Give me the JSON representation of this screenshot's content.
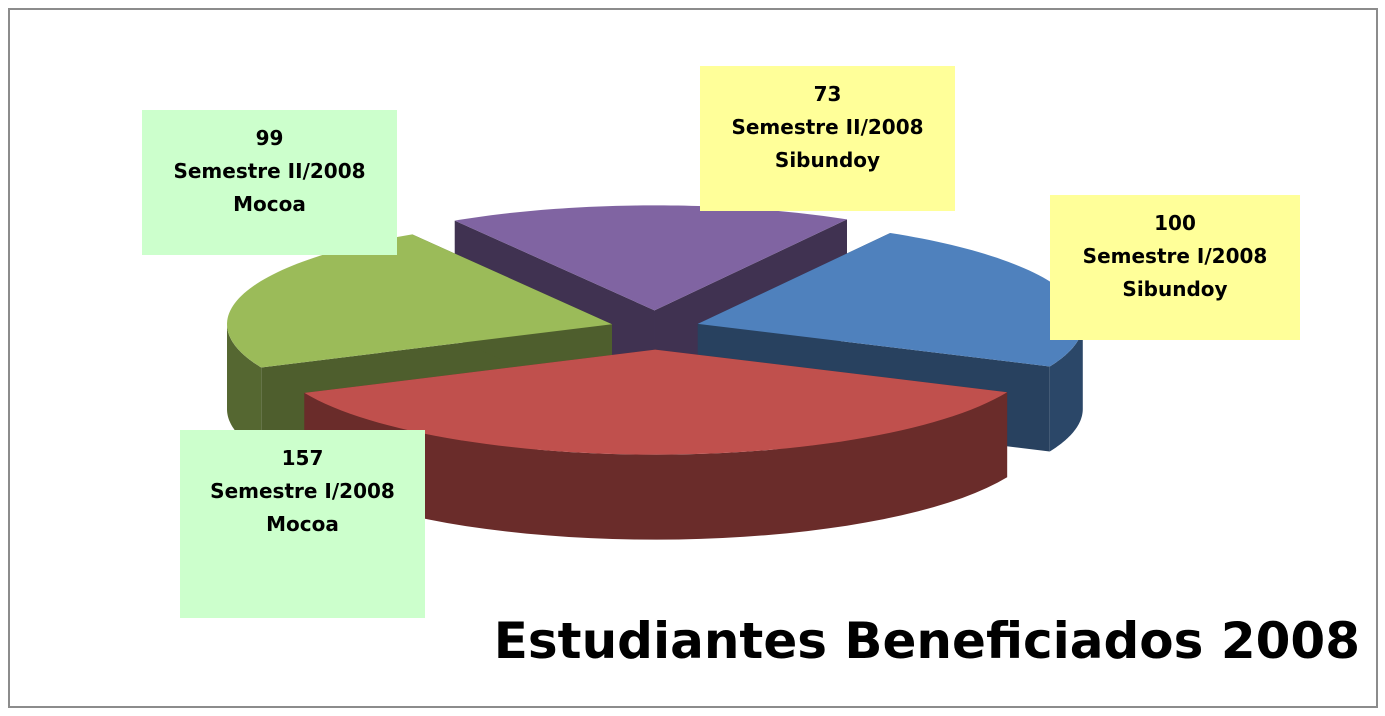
{
  "chart_data": {
    "type": "pie",
    "title": "Estudiantes Beneficiados 2008",
    "categories": [
      "Semestre I/2008\nSibundoy",
      "Semestre I/2008\nMocoa",
      "Semestre II/2008\nMocoa",
      "Semestre II/2008\nSibundoy"
    ],
    "values": [
      100,
      157,
      99,
      73
    ],
    "colors": [
      "#4f81bd",
      "#c0504d",
      "#9bbb59",
      "#8064a2"
    ],
    "label_colors": [
      "#ffff99",
      "#ccffcc",
      "#ccffcc",
      "#ffff99"
    ],
    "exploded": true,
    "three_d": true
  }
}
